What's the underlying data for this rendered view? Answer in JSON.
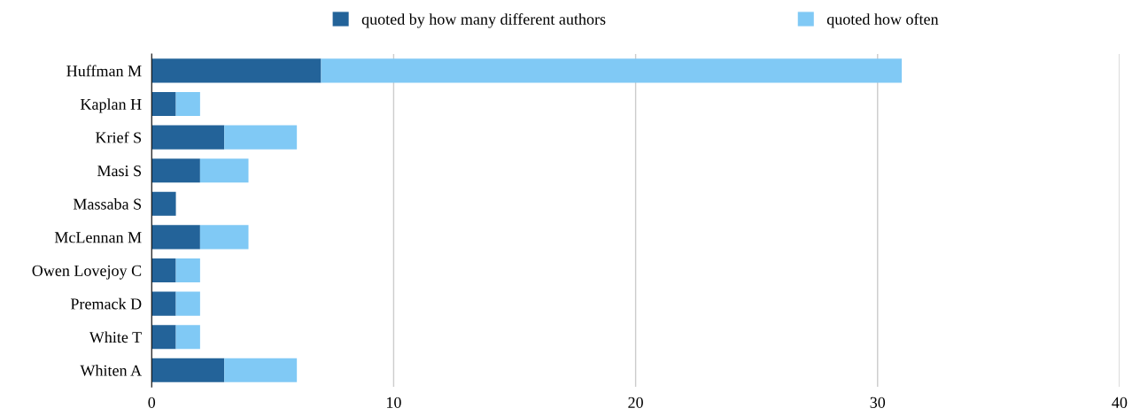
{
  "chart_data": {
    "type": "bar",
    "orientation": "horizontal",
    "stacked": true,
    "categories": [
      "Huffman M",
      "Kaplan H",
      "Krief S",
      "Masi S",
      "Massaba S",
      "McLennan M",
      "Owen Lovejoy C",
      "Premack D",
      "White T",
      "Whiten A"
    ],
    "series": [
      {
        "name": "quoted by how many different authors",
        "color": "#236399",
        "values": [
          7,
          1,
          3,
          2,
          1,
          2,
          1,
          1,
          1,
          3
        ]
      },
      {
        "name": "quoted how often",
        "color": "#80c9f5",
        "values": [
          24,
          1,
          3,
          2,
          0,
          2,
          1,
          1,
          1,
          3
        ]
      }
    ],
    "xlim": [
      0,
      40
    ],
    "xticks": [
      0,
      10,
      20,
      30,
      40
    ],
    "grid": "x",
    "legend": "top"
  }
}
